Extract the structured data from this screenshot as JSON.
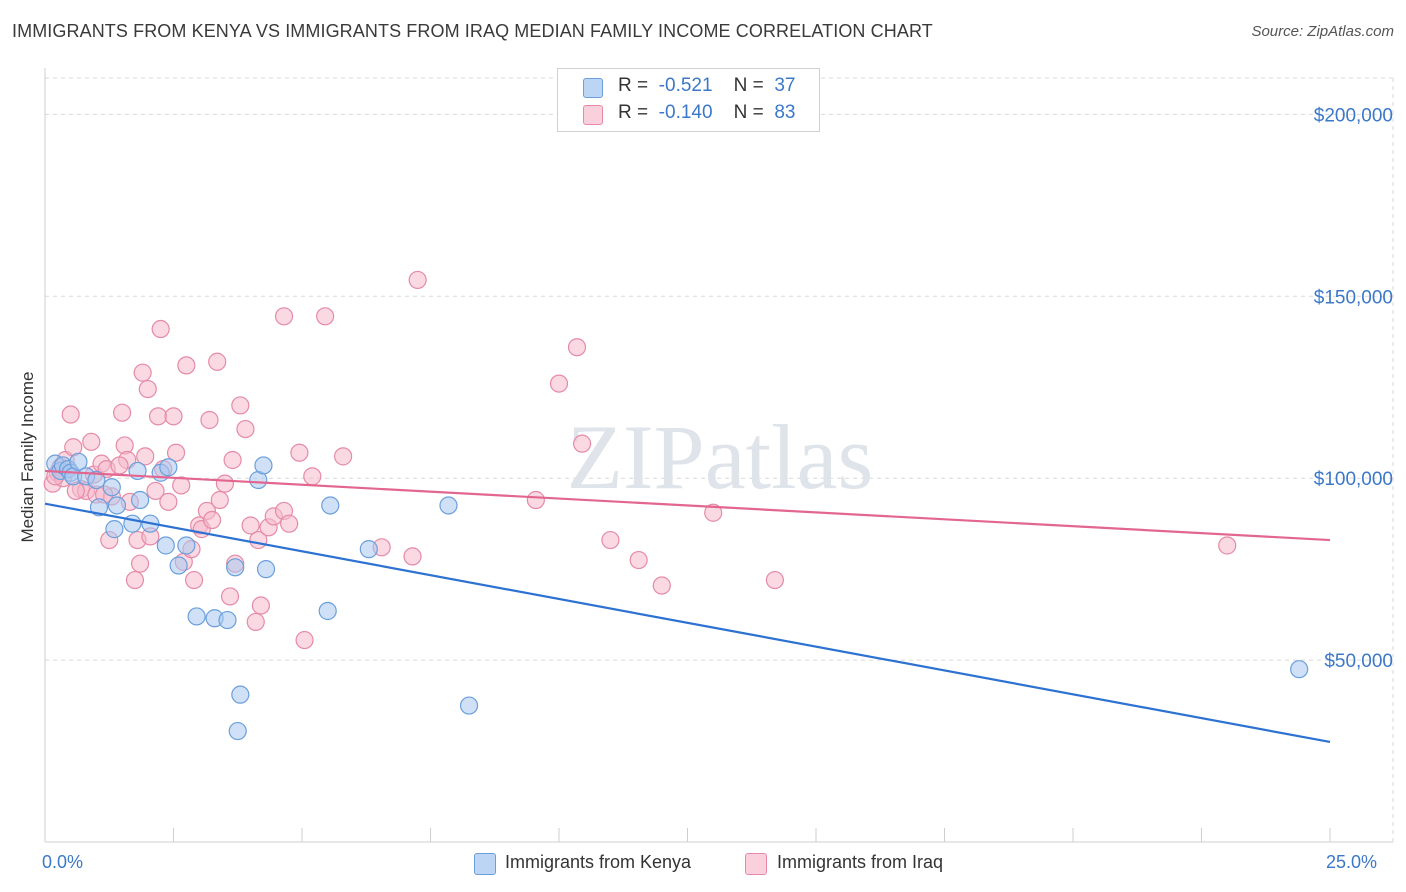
{
  "title": "IMMIGRANTS FROM KENYA VS IMMIGRANTS FROM IRAQ MEDIAN FAMILY INCOME CORRELATION CHART",
  "source": "Source: ZipAtlas.com",
  "watermark": "ZIPatlas",
  "colors": {
    "kenya_fill": "#a9c8f0",
    "kenya_stroke": "#6a9fdc",
    "kenya_line": "#2d72d2",
    "iraq_fill": "#f6b9cc",
    "iraq_stroke": "#e58aa8",
    "iraq_line": "#e2668f",
    "accent_text": "#3b78c9",
    "grid": "#d9d9d9"
  },
  "legend": {
    "rows": [
      {
        "r_label": "R =",
        "r_value": "-0.521",
        "n_label": "N =",
        "n_value": "37"
      },
      {
        "r_label": "R =",
        "r_value": "-0.140",
        "n_label": "N =",
        "n_value": "83"
      }
    ]
  },
  "bottom_legend": {
    "kenya": "Immigrants from Kenya",
    "iraq": "Immigrants from Iraq"
  },
  "chart_data": {
    "type": "scatter",
    "title": "IMMIGRANTS FROM KENYA VS IMMIGRANTS FROM IRAQ MEDIAN FAMILY INCOME CORRELATION CHART",
    "xlabel": "",
    "ylabel": "Median Family Income",
    "xlim": [
      0,
      25
    ],
    "ylim": [
      0,
      210000
    ],
    "x_tick_labels": [
      "0.0%",
      "25.0%"
    ],
    "y_ticks": [
      50000,
      100000,
      150000,
      200000
    ],
    "y_tick_labels": [
      "$50,000",
      "$100,000",
      "$150,000",
      "$200,000"
    ],
    "grid": true,
    "legend_position": "top-center",
    "series": [
      {
        "name": "Immigrants from Kenya",
        "r": -0.521,
        "n": 37,
        "trend": {
          "x0": 0,
          "y0": 93000,
          "x1": 25,
          "y1": 27500
        },
        "points": [
          [
            0.2,
            104000
          ],
          [
            0.3,
            102000
          ],
          [
            0.35,
            103500
          ],
          [
            0.45,
            102500
          ],
          [
            0.5,
            101500
          ],
          [
            0.55,
            100500
          ],
          [
            0.65,
            104500
          ],
          [
            0.8,
            100500
          ],
          [
            1.0,
            99500
          ],
          [
            1.05,
            92000
          ],
          [
            1.3,
            97500
          ],
          [
            1.4,
            92500
          ],
          [
            1.35,
            86000
          ],
          [
            1.7,
            87500
          ],
          [
            1.8,
            102000
          ],
          [
            1.85,
            94000
          ],
          [
            2.05,
            87500
          ],
          [
            2.25,
            101500
          ],
          [
            2.4,
            103000
          ],
          [
            2.35,
            81500
          ],
          [
            2.6,
            76000
          ],
          [
            2.75,
            81500
          ],
          [
            2.95,
            62000
          ],
          [
            3.3,
            61500
          ],
          [
            3.55,
            61000
          ],
          [
            3.7,
            75500
          ],
          [
            3.8,
            40500
          ],
          [
            3.75,
            30500
          ],
          [
            4.15,
            99500
          ],
          [
            4.25,
            103500
          ],
          [
            4.3,
            75000
          ],
          [
            5.5,
            63500
          ],
          [
            5.55,
            92500
          ],
          [
            6.3,
            80500
          ],
          [
            7.85,
            92500
          ],
          [
            8.25,
            37500
          ],
          [
            24.4,
            47500
          ]
        ]
      },
      {
        "name": "Immigrants from Iraq",
        "r": -0.14,
        "n": 83,
        "trend": {
          "x0": 0,
          "y0": 102000,
          "x1": 25,
          "y1": 83000
        },
        "points": [
          [
            0.15,
            98500
          ],
          [
            0.25,
            101500
          ],
          [
            0.3,
            103000
          ],
          [
            0.35,
            100000
          ],
          [
            0.4,
            105000
          ],
          [
            0.5,
            117500
          ],
          [
            0.55,
            108500
          ],
          [
            0.7,
            97000
          ],
          [
            0.8,
            96500
          ],
          [
            0.9,
            110000
          ],
          [
            0.95,
            101000
          ],
          [
            1.0,
            95500
          ],
          [
            1.1,
            104000
          ],
          [
            1.2,
            102500
          ],
          [
            1.25,
            83000
          ],
          [
            1.3,
            95000
          ],
          [
            1.5,
            118000
          ],
          [
            1.55,
            109000
          ],
          [
            1.6,
            105000
          ],
          [
            1.65,
            93500
          ],
          [
            1.75,
            72000
          ],
          [
            1.8,
            83000
          ],
          [
            1.85,
            76500
          ],
          [
            1.9,
            129000
          ],
          [
            1.95,
            106000
          ],
          [
            2.0,
            124500
          ],
          [
            2.05,
            84000
          ],
          [
            2.15,
            96500
          ],
          [
            2.2,
            117000
          ],
          [
            2.25,
            141000
          ],
          [
            2.4,
            93500
          ],
          [
            2.5,
            117000
          ],
          [
            2.55,
            107000
          ],
          [
            2.65,
            98000
          ],
          [
            2.7,
            77000
          ],
          [
            2.75,
            131000
          ],
          [
            2.85,
            80500
          ],
          [
            2.9,
            72000
          ],
          [
            3.0,
            87000
          ],
          [
            3.05,
            86000
          ],
          [
            3.15,
            91000
          ],
          [
            3.2,
            116000
          ],
          [
            3.25,
            88500
          ],
          [
            3.35,
            132000
          ],
          [
            3.4,
            94000
          ],
          [
            3.5,
            98500
          ],
          [
            3.6,
            67500
          ],
          [
            3.65,
            105000
          ],
          [
            3.7,
            76500
          ],
          [
            3.8,
            120000
          ],
          [
            3.9,
            113500
          ],
          [
            4.0,
            87000
          ],
          [
            4.1,
            60500
          ],
          [
            4.15,
            83000
          ],
          [
            4.2,
            65000
          ],
          [
            4.35,
            86500
          ],
          [
            4.45,
            89500
          ],
          [
            4.65,
            91000
          ],
          [
            4.75,
            87500
          ],
          [
            4.65,
            144500
          ],
          [
            4.95,
            107000
          ],
          [
            5.05,
            55500
          ],
          [
            5.2,
            100500
          ],
          [
            5.45,
            144500
          ],
          [
            5.8,
            106000
          ],
          [
            6.55,
            81000
          ],
          [
            7.15,
            78500
          ],
          [
            7.25,
            154500
          ],
          [
            9.55,
            94000
          ],
          [
            10.0,
            126000
          ],
          [
            10.35,
            136000
          ],
          [
            10.45,
            109500
          ],
          [
            11.0,
            83000
          ],
          [
            11.55,
            77500
          ],
          [
            12.0,
            70500
          ],
          [
            13.0,
            90500
          ],
          [
            14.2,
            72000
          ],
          [
            23.0,
            81500
          ],
          [
            0.6,
            96500
          ],
          [
            1.15,
            95500
          ],
          [
            2.3,
            102500
          ],
          [
            0.2,
            100500
          ],
          [
            1.45,
            103500
          ]
        ]
      }
    ]
  }
}
